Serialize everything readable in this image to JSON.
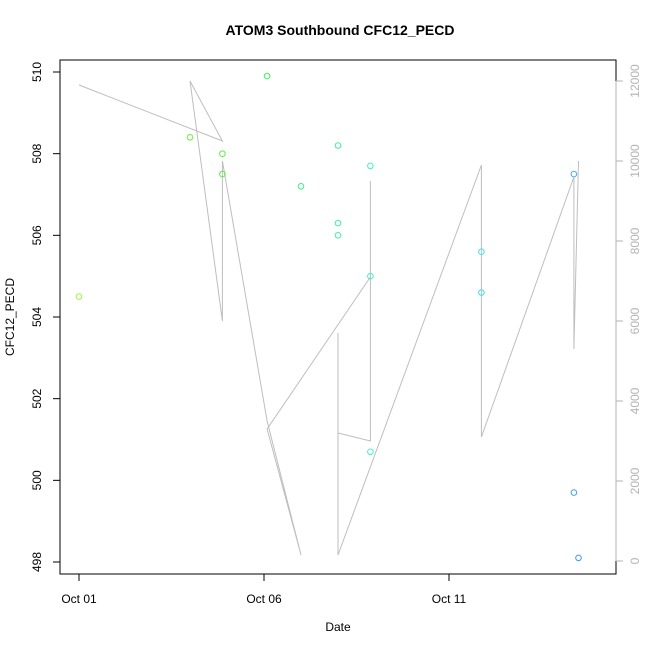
{
  "chart_data": {
    "type": "scatter",
    "title": "ATOM3 Southbound CFC12_PECD",
    "xlabel": "Date",
    "ylabel": "CFC12_PECD",
    "ylabel_right": "",
    "x_axis_type": "date",
    "xlim": [
      "2016-10-01",
      "2016-10-15"
    ],
    "ylim": [
      498,
      510
    ],
    "y2lim": [
      0,
      12000
    ],
    "x_ticks": [
      {
        "date": "2016-10-01",
        "label": "Oct 01"
      },
      {
        "date": "2016-10-06",
        "label": "Oct 06"
      },
      {
        "date": "2016-10-11",
        "label": "Oct 11"
      }
    ],
    "y_ticks": [
      498,
      500,
      502,
      504,
      506,
      508,
      510
    ],
    "y2_ticks": [
      0,
      2000,
      4000,
      6000,
      8000,
      10000,
      12000
    ],
    "grid": false,
    "legend": "none",
    "point_colors_note": "points colored by date, green to blue",
    "series": [
      {
        "kind": "points",
        "axis": "left",
        "points": [
          {
            "x": "2016-10-01 00:00",
            "y": 504.5,
            "color": "#9cf542"
          },
          {
            "x": "2016-10-04 00:00",
            "y": 508.4,
            "color": "#6cf03c"
          },
          {
            "x": "2016-10-04 21:00",
            "y": 508.0,
            "color": "#54f03f"
          },
          {
            "x": "2016-10-04 21:00",
            "y": 507.5,
            "color": "#54f03f"
          },
          {
            "x": "2016-10-06 02:00",
            "y": 509.9,
            "color": "#3ef05a"
          },
          {
            "x": "2016-10-07 00:00",
            "y": 507.2,
            "color": "#3ef07a"
          },
          {
            "x": "2016-10-08 00:00",
            "y": 508.2,
            "color": "#3ef09c"
          },
          {
            "x": "2016-10-08 00:00",
            "y": 506.3,
            "color": "#3ef0a8"
          },
          {
            "x": "2016-10-08 00:00",
            "y": 506.0,
            "color": "#3ef0b0"
          },
          {
            "x": "2016-10-08 21:00",
            "y": 507.7,
            "color": "#3ef0bc"
          },
          {
            "x": "2016-10-08 21:00",
            "y": 505.0,
            "color": "#3ef0c8"
          },
          {
            "x": "2016-10-08 21:00",
            "y": 500.7,
            "color": "#3ef0d2"
          },
          {
            "x": "2016-10-11 21:00",
            "y": 505.6,
            "color": "#3ee4f0"
          },
          {
            "x": "2016-10-11 21:00",
            "y": 504.6,
            "color": "#3edaf0"
          },
          {
            "x": "2016-10-14 09:00",
            "y": 507.5,
            "color": "#3eaef0"
          },
          {
            "x": "2016-10-14 09:00",
            "y": 499.7,
            "color": "#3ea2f0"
          },
          {
            "x": "2016-10-14 12:00",
            "y": 498.1,
            "color": "#3e96f0"
          }
        ]
      },
      {
        "kind": "line",
        "axis": "right",
        "color": "#bebebe",
        "points": [
          {
            "x": "2016-10-01 00:00",
            "y": 11900
          },
          {
            "x": "2016-10-04 21:00",
            "y": 10500
          },
          {
            "x": "2016-10-04 00:00",
            "y": 12000
          },
          {
            "x": "2016-10-04 21:00",
            "y": 6000
          },
          {
            "x": "2016-10-04 21:00",
            "y": 10000
          },
          {
            "x": "2016-10-06 02:00",
            "y": 3500
          },
          {
            "x": "2016-10-07 00:00",
            "y": 150
          },
          {
            "x": "2016-10-06 02:00",
            "y": 3300
          },
          {
            "x": "2016-10-08 21:00",
            "y": 7100
          },
          {
            "x": "2016-10-08 21:00",
            "y": 9500
          },
          {
            "x": "2016-10-08 21:00",
            "y": 3000
          },
          {
            "x": "2016-10-08 00:00",
            "y": 3200
          },
          {
            "x": "2016-10-08 00:00",
            "y": 5700
          },
          {
            "x": "2016-10-08 00:00",
            "y": 150
          },
          {
            "x": "2016-10-11 21:00",
            "y": 9900
          },
          {
            "x": "2016-10-11 21:00",
            "y": 3100
          },
          {
            "x": "2016-10-14 09:00",
            "y": 9600
          },
          {
            "x": "2016-10-14 09:00",
            "y": 5300
          },
          {
            "x": "2016-10-14 12:00",
            "y": 10000
          }
        ]
      }
    ]
  }
}
